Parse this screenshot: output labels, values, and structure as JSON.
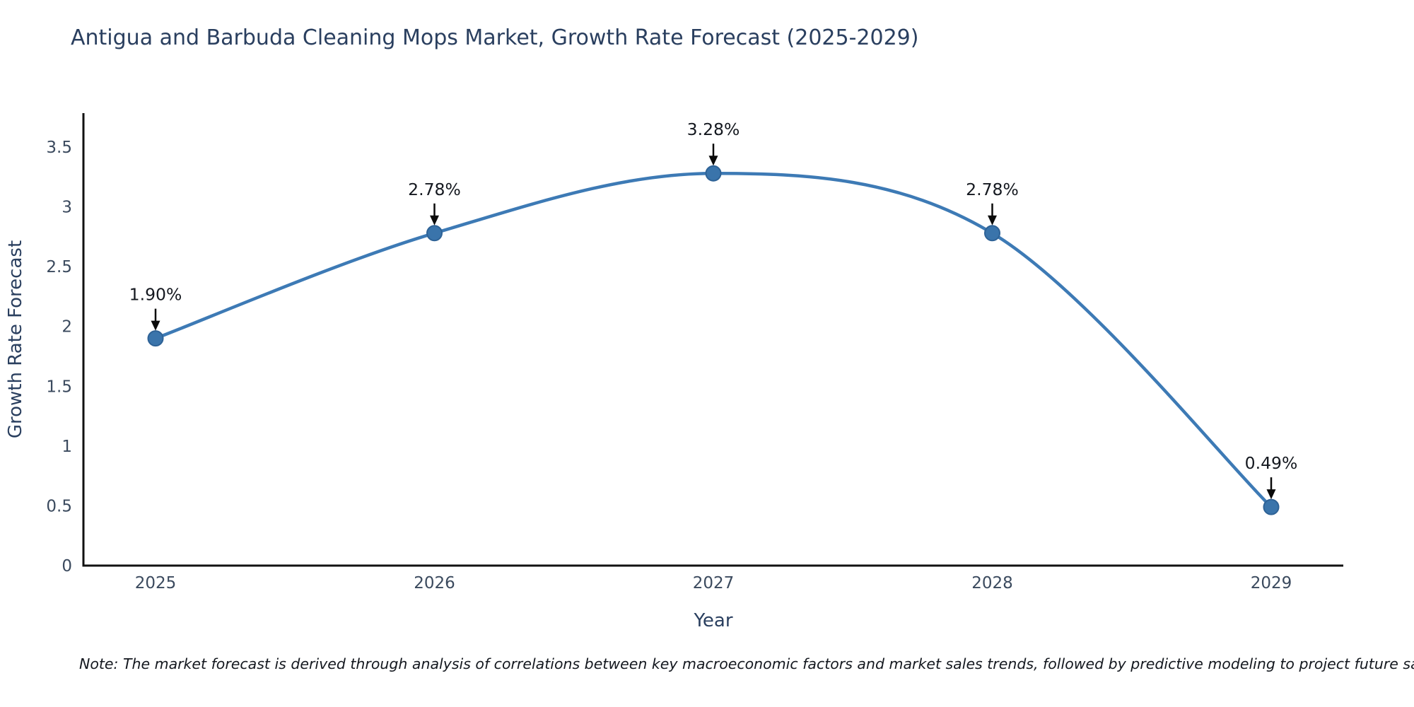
{
  "title": "Antigua and Barbuda Cleaning Mops Market, Growth Rate Forecast (2025-2029)",
  "note": "Note: The market forecast is derived through analysis of correlations between key macroeconomic factors and market sales trends, followed by predictive modeling to project future sales",
  "chart_data": {
    "type": "line",
    "title": "Antigua and Barbuda Cleaning Mops Market, Growth Rate Forecast (2025-2029)",
    "x": [
      "2025",
      "2026",
      "2027",
      "2028",
      "2029"
    ],
    "values": [
      1.9,
      2.78,
      3.28,
      2.78,
      0.49
    ],
    "point_labels": [
      "1.90%",
      "2.78%",
      "3.28%",
      "2.78%",
      "0.49%"
    ],
    "xlabel": "Year",
    "ylabel": "Growth Rate Forecast",
    "ylim": [
      0,
      3.5
    ],
    "yticks": [
      0,
      0.5,
      1,
      1.5,
      2,
      2.5,
      3,
      3.5
    ],
    "ytick_labels": [
      "0",
      "0.5",
      "1",
      "1.5",
      "2",
      "2.5",
      "3",
      "3.5"
    ],
    "line_shape": "spline",
    "grid": false,
    "legend": "none",
    "colors": {
      "line": "#3d7ab5",
      "marker_fill": "#3a74ab",
      "marker_edge": "#2e6296",
      "axis_line": "#111111",
      "title_text": "#2a3f5f",
      "axis_title_text": "#2a3f5f",
      "tick_text": "#3b4a5e",
      "annotation_text": "#14181f",
      "arrow": "#0a0a0a"
    }
  }
}
